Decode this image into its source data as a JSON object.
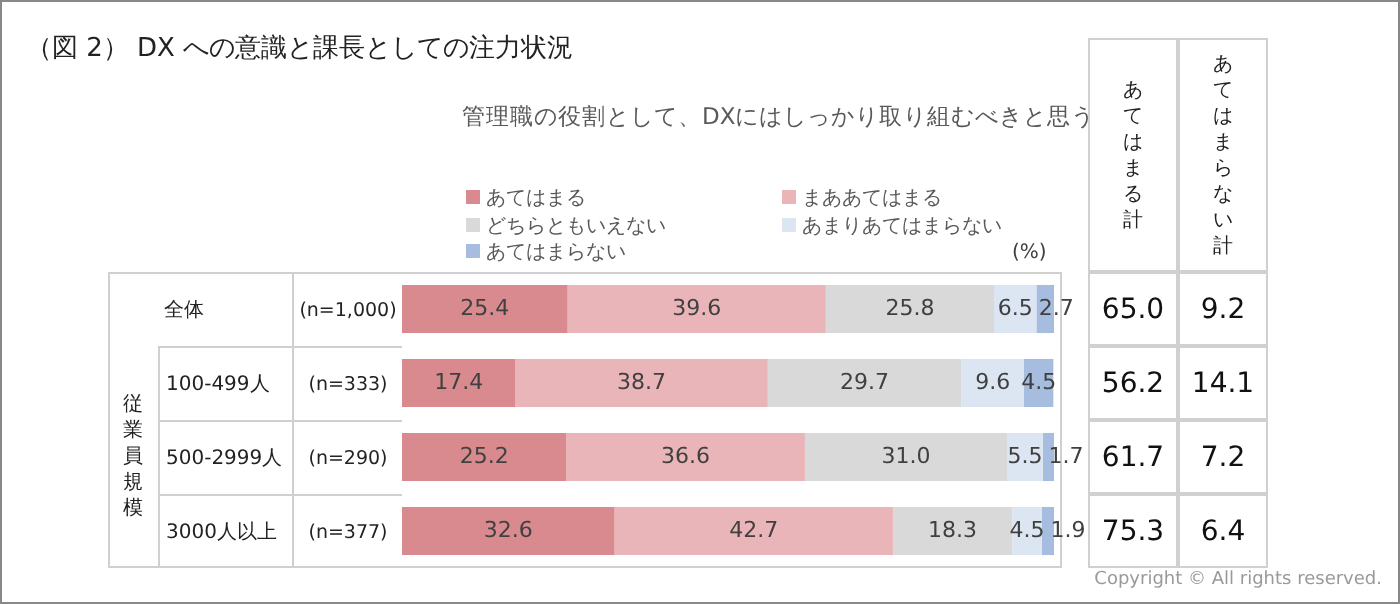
{
  "chart_data": [
    {
      "type": "bar",
      "orientation": "horizontal",
      "stacked": true,
      "legend": "top",
      "title": "（図 2） DX への意識と課長としての注力状況",
      "subtitle": "管理職の役割として、DXにはしっかり取り組むべきと思う",
      "categories": [
        "全体",
        "100-499人",
        "500-2999人",
        "3000人以上"
      ],
      "series": [
        {
          "name": "あてはまる",
          "color": "#d98a8e",
          "values": [
            25.4,
            17.4,
            25.2,
            32.6
          ],
          "value_labels": [
            "25.4",
            "17.4",
            "25.2",
            "32.6"
          ]
        },
        {
          "name": "まああてはまる",
          "color": "#eab5b8",
          "values": [
            39.6,
            38.7,
            36.6,
            42.7
          ],
          "value_labels": [
            "39.6",
            "38.7",
            "36.6",
            "42.7"
          ]
        },
        {
          "name": "どちらともいえない",
          "color": "#d9d9d9",
          "values": [
            25.8,
            29.7,
            31.0,
            18.3
          ],
          "value_labels": [
            "25.8",
            "29.7",
            "31.0",
            "18.3"
          ]
        },
        {
          "name": "あまりあてはまらない",
          "color": "#dce6f2",
          "values": [
            6.5,
            9.6,
            5.5,
            4.5
          ],
          "value_labels": [
            "6.5",
            "9.6",
            "5.5",
            "4.5"
          ]
        },
        {
          "name": "あてはまらない",
          "color": "#a6bde0",
          "values": [
            2.7,
            4.5,
            1.7,
            1.9
          ],
          "value_labels": [
            "2.7",
            "4.5",
            "1.7",
            "1.9"
          ]
        }
      ],
      "annotations": [
        "(n=1,000)",
        "(n=333)",
        "(n=290)",
        "(n=377)",
        "従業員規模",
        "(%)",
        "Copyright © All rights reserved."
      ]
    },
    {
      "type": "other",
      "annotations": [
        "あてはまる計",
        "あてはまらない計",
        "65.0",
        "9.2",
        "56.2",
        "14.1",
        "61.7",
        "7.2",
        "75.3",
        "6.4"
      ]
    }
  ]
}
